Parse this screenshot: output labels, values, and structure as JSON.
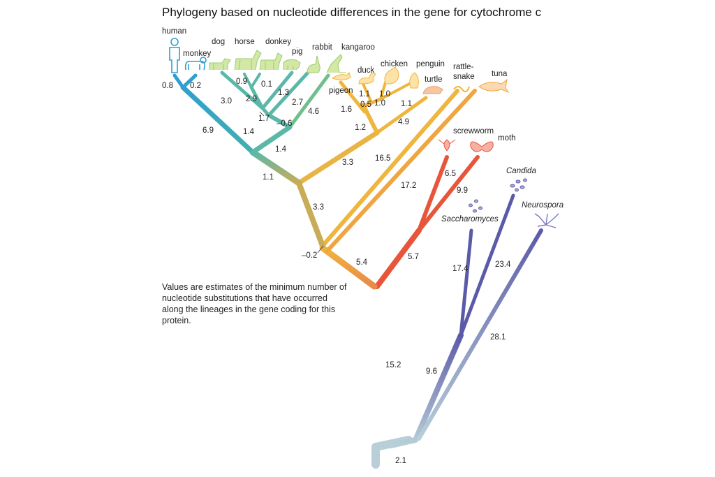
{
  "title": "Phylogeny based on nucleotide differences in the gene for cytochrome c",
  "note": "Values are estimates of the minimum number of nucleotide substitutions that have occurred along the lineages in the gene coding for this protein.",
  "colors": {
    "mammal": "#5bb8a8",
    "primate": "#2e9fd0",
    "bird_reptile": "#efb53c",
    "fish": "#f0a640",
    "insect": "#e7553a",
    "fungus": "#5b5aa8",
    "root": "#b9cfd8",
    "trunk": "#ec8a45"
  },
  "taxa": {
    "human": "human",
    "monkey": "monkey",
    "dog": "dog",
    "horse": "horse",
    "donkey": "donkey",
    "pig": "pig",
    "rabbit": "rabbit",
    "kangaroo": "kangaroo",
    "duck": "duck",
    "pigeon": "pigeon",
    "chicken": "chicken",
    "penguin": "penguin",
    "turtle": "turtle",
    "rattlesnake_1": "rattle-",
    "rattlesnake_2": "snake",
    "tuna": "tuna",
    "screwworm": "screwworm",
    "moth": "moth",
    "candida": "Candida",
    "neurospora": "Neurospora",
    "saccharomyces": "Saccharomyces"
  },
  "branch_lengths": {
    "human": "0.8",
    "monkey": "0.2",
    "primates": "6.9",
    "dog": "3.0",
    "horse": "0.9",
    "donkey": "0.1",
    "horse_donkey": "2.9",
    "pig": "1.3",
    "dog_group": "1.7",
    "ungulates": "1.4",
    "rabbit": "2.7",
    "rabbit_join": "-0.6",
    "kangaroo": "4.6",
    "placentals": "1.4",
    "mammals": "1.1",
    "duck": "1.1",
    "chicken": "1.0",
    "chicken_penguin": "1.0",
    "duck_group": "0.5",
    "penguin": "1.1",
    "pigeon": "1.6",
    "birds": "1.2",
    "turtle": "4.9",
    "amniote_birds": "3.3",
    "rattlesnake": "16.5",
    "tetrapods": "3.3",
    "tuna": "17.2",
    "vertebrate_join": "-0.2",
    "vertebrates": "5.4",
    "screwworm": "6.5",
    "moth": "9.9",
    "insects": "5.7",
    "animals": "15.2",
    "saccharomyces": "17.4",
    "candida": "23.4",
    "yeasts": "9.6",
    "neurospora": "28.1",
    "root": "2.1"
  }
}
